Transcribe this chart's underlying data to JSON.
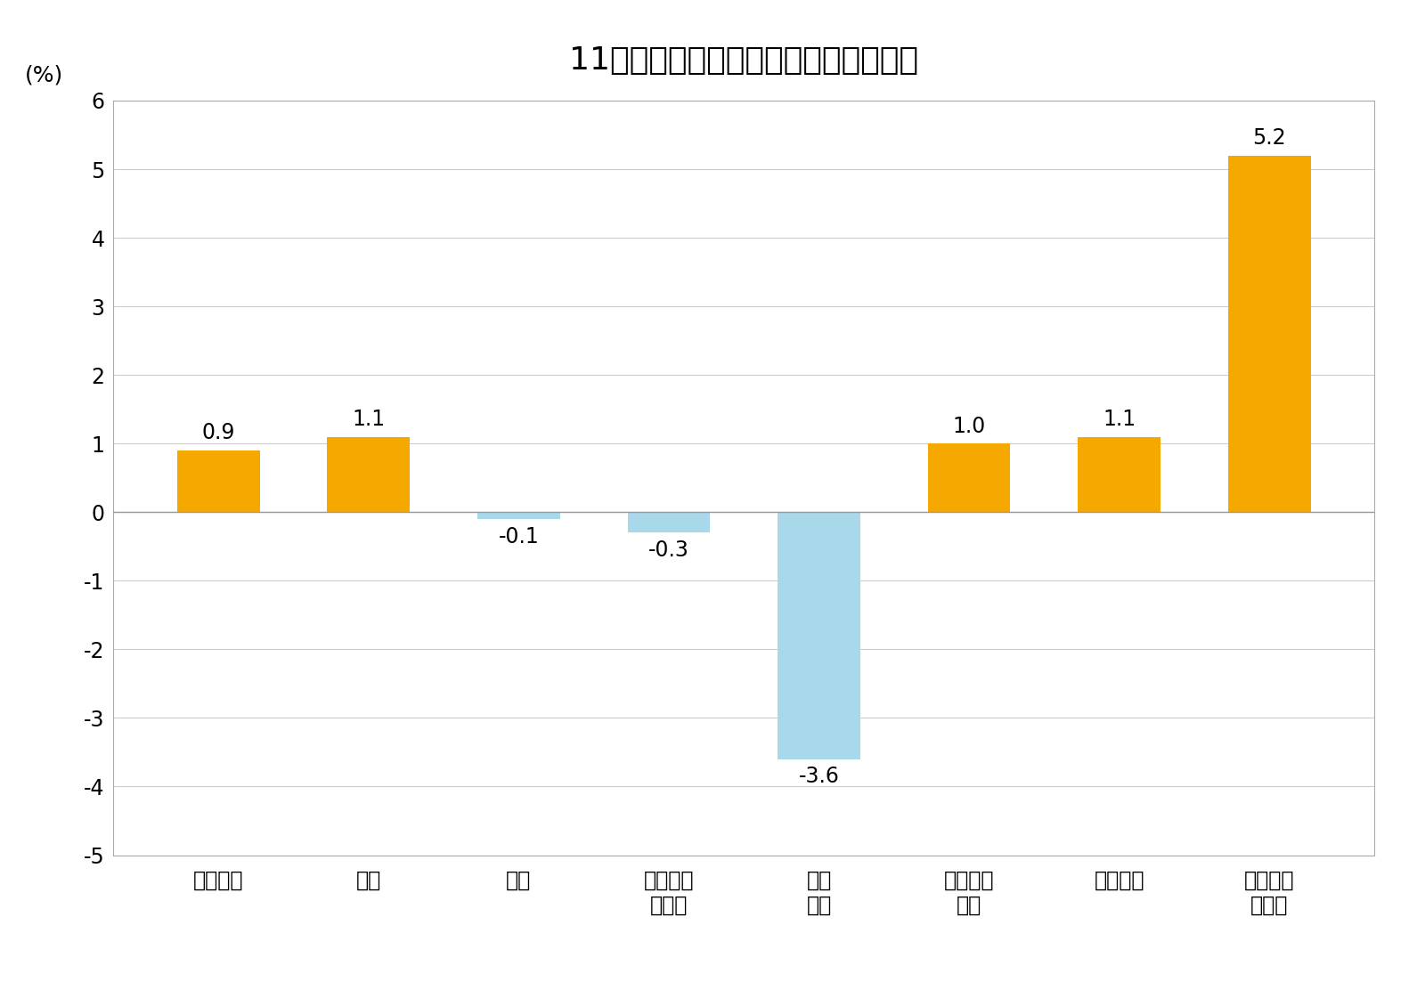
{
  "title": "11月份居民消费价格分类别同比涨跌幅",
  "ylabel": "(%)",
  "categories": [
    "食品烟酒",
    "衣着",
    "居住",
    "生活用品\n及服务",
    "交通\n通信",
    "教育文化\n娱乐",
    "医疗保健",
    "其他用品\n及服务"
  ],
  "values": [
    0.9,
    1.1,
    -0.1,
    -0.3,
    -3.6,
    1.0,
    1.1,
    5.2
  ],
  "bar_colors": [
    "#F5A800",
    "#F5A800",
    "#A8D8EA",
    "#A8D8EA",
    "#A8D8EA",
    "#F5A800",
    "#F5A800",
    "#F5A800"
  ],
  "ylim": [
    -5.0,
    6.0
  ],
  "yticks": [
    -5.0,
    -4.0,
    -3.0,
    -2.0,
    -1.0,
    0.0,
    1.0,
    2.0,
    3.0,
    4.0,
    5.0,
    6.0
  ],
  "title_fontsize": 26,
  "label_fontsize": 18,
  "tick_fontsize": 17,
  "value_fontsize": 17,
  "background_color": "#ffffff",
  "grid_color": "#cccccc",
  "bar_width": 0.55
}
